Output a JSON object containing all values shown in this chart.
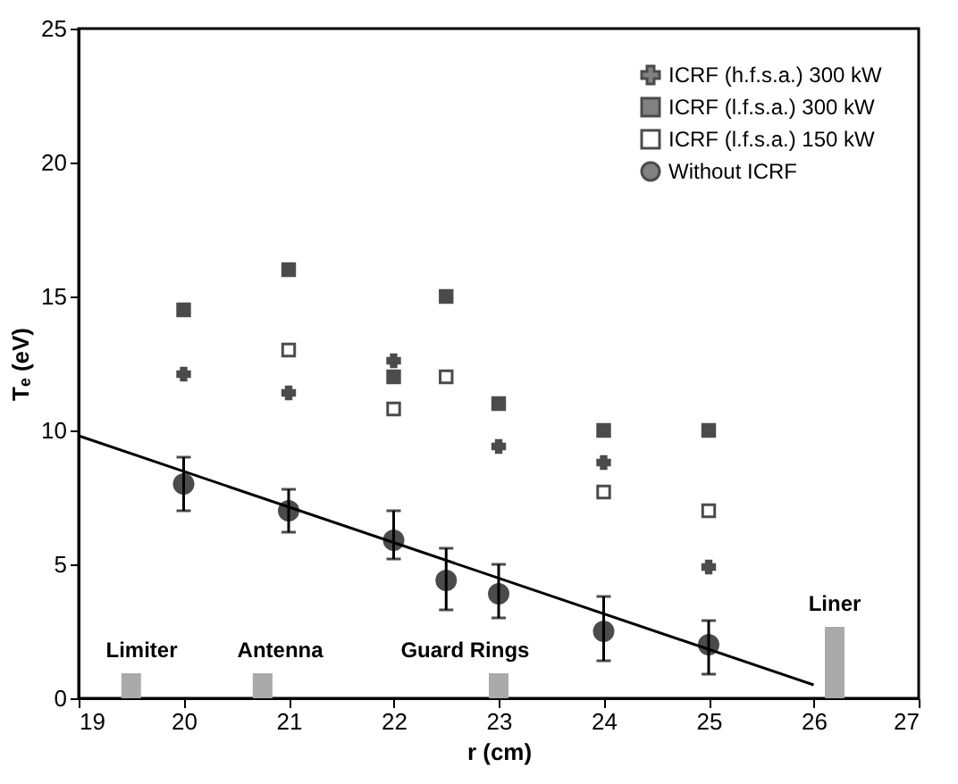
{
  "chart_data": {
    "type": "scatter",
    "xlabel": "r (cm)",
    "ylabel": "Tₑ (eV)",
    "xlim": [
      19,
      27
    ],
    "xticks": [
      19,
      20,
      21,
      22,
      23,
      24,
      25,
      26,
      27
    ],
    "ylim": [
      0,
      25
    ],
    "yticks": [
      0,
      5,
      10,
      15,
      20,
      25
    ],
    "grid": false,
    "legend": "top right",
    "series": [
      {
        "name": "ICRF (h.f.s.a.) 300 kW",
        "color": "#000000",
        "marker": "cross",
        "x": [
          20,
          21,
          22,
          23,
          24,
          25
        ],
        "values": [
          12.1,
          11.4,
          12.6,
          9.4,
          8.8,
          4.9
        ]
      },
      {
        "name": "ICRF (l.f.s.a.) 300 kW",
        "color": "#000000",
        "marker": "square",
        "x": [
          20,
          21,
          22,
          22.5,
          23,
          24,
          25
        ],
        "values": [
          14.5,
          16,
          12,
          15,
          11,
          10,
          10
        ]
      },
      {
        "name": "ICRF (l.f.s.a.) 150 kW",
        "color": "#ffffff",
        "marker": "square",
        "x": [
          21,
          22,
          22.5,
          24,
          25
        ],
        "values": [
          13,
          10.8,
          12,
          7.7,
          7
        ]
      },
      {
        "name": "Without ICRF",
        "color": "#000000",
        "marker": "circle",
        "x": [
          20,
          21,
          22,
          22.5,
          23,
          24,
          25
        ],
        "values": [
          8,
          7,
          5.9,
          4.4,
          3.9,
          2.5,
          2
        ],
        "errors": [
          [
            7,
            9
          ],
          [
            6.2,
            7.8
          ],
          [
            5.2,
            7
          ],
          [
            3.3,
            5.6
          ],
          [
            3,
            5
          ],
          [
            1.4,
            3.8
          ],
          [
            0.9,
            2.9
          ]
        ]
      },
      {
        "type": "line",
        "color": "#000000",
        "x": [
          19,
          26
        ],
        "values": [
          9.8,
          0.5
        ]
      }
    ],
    "annotations": [
      "Limiter",
      "Antenna",
      "Guard Rings",
      "Liner"
    ]
  }
}
